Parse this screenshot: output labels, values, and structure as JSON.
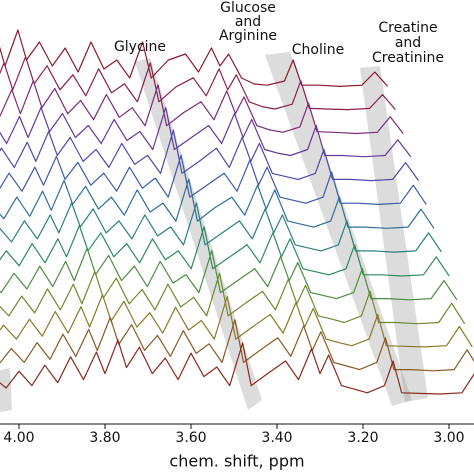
{
  "chart_data": {
    "type": "waterfall",
    "xlabel": "chem. shift, ppm",
    "annotations": [
      [
        "Glycine"
      ],
      [
        "Glucose",
        "and",
        "Arginine"
      ],
      [
        "Choline"
      ],
      [
        "Creatine",
        "and",
        "Creatinine"
      ]
    ],
    "xticks": [
      {
        "value": 4,
        "label": "4.00"
      },
      {
        "value": 3.8,
        "label": "3.80"
      },
      {
        "value": 3.6,
        "label": "3.60"
      },
      {
        "value": 3.4,
        "label": "3.40"
      },
      {
        "value": 3.2,
        "label": "3.20"
      },
      {
        "value": 3,
        "label": "3.00"
      }
    ],
    "x": [
      4.1,
      4.06,
      4.03,
      4.0,
      3.97,
      3.94,
      3.91,
      3.88,
      3.85,
      3.82,
      3.8,
      3.77,
      3.75,
      3.72,
      3.69,
      3.66,
      3.63,
      3.6,
      3.57,
      3.54,
      3.51,
      3.48,
      3.46,
      3.42,
      3.38,
      3.35,
      3.32,
      3.3,
      3.28,
      3.25,
      3.22,
      3.19,
      3.15,
      3.13,
      3.11,
      3.07,
      3.02,
      2.97,
      2.94,
      2.91
    ],
    "series": [
      {
        "color": "#8b1a2a",
        "values": [
          2,
          3.5,
          2,
          5,
          2.5,
          6,
          3,
          8,
          3.5,
          9,
          4,
          10,
          5,
          8,
          4,
          7,
          3,
          8,
          3.5,
          5,
          2,
          8,
          2,
          5,
          6,
          3,
          7,
          4,
          6,
          2,
          1,
          0.8,
          1.5,
          5,
          0.8,
          0.8,
          0.6,
          0.8,
          3,
          0.6
        ]
      },
      {
        "color": "#8b2050",
        "values": [
          1.8,
          3.2,
          2,
          4.8,
          2.4,
          5.5,
          3,
          7.5,
          3.2,
          8.5,
          4,
          9.5,
          5,
          8,
          4,
          6.5,
          3,
          7.5,
          3.5,
          5,
          2,
          8.5,
          2,
          4.5,
          6,
          3,
          7.5,
          4,
          6.5,
          2,
          1.2,
          0.8,
          1.6,
          5.5,
          0.9,
          0.8,
          0.7,
          0.9,
          3.2,
          0.7
        ]
      },
      {
        "color": "#7d2a7a",
        "values": [
          1.7,
          3,
          1.8,
          4.5,
          2.2,
          5.2,
          2.8,
          7,
          3.2,
          8,
          4,
          9.5,
          5,
          8.2,
          4,
          6.2,
          3,
          7.2,
          3.4,
          5,
          2,
          8.8,
          2,
          4.2,
          6,
          3,
          7.8,
          4,
          6.8,
          2,
          1.3,
          0.9,
          1.8,
          5.8,
          1,
          0.9,
          0.7,
          0.9,
          3.5,
          0.7
        ]
      },
      {
        "color": "#633a9a",
        "values": [
          1.6,
          3,
          1.6,
          4.2,
          2,
          5,
          2.6,
          6.5,
          3,
          7.5,
          4,
          9,
          5,
          8,
          4,
          6,
          3,
          7,
          3.5,
          5,
          2,
          9,
          2,
          4,
          6,
          3,
          8,
          4,
          7,
          2,
          1.4,
          1,
          2,
          6,
          1,
          1,
          0.8,
          1,
          3.6,
          0.8
        ]
      },
      {
        "color": "#4d4aa8",
        "values": [
          1.5,
          3,
          1.5,
          4,
          2,
          5,
          2.5,
          6.2,
          3,
          7.2,
          4,
          9,
          5,
          8,
          4,
          6,
          3,
          7,
          3.5,
          5,
          2,
          9.2,
          2,
          4,
          6.2,
          3,
          8,
          4,
          7,
          2,
          1.5,
          1,
          2,
          6,
          1,
          1,
          0.8,
          1,
          3.8,
          0.8
        ]
      },
      {
        "color": "#3a5aa8",
        "values": [
          1.5,
          2.8,
          1.5,
          4,
          2,
          4.8,
          2.5,
          6,
          3,
          7,
          4,
          8.8,
          5,
          7.8,
          4,
          6,
          3,
          7,
          3.5,
          5.2,
          2,
          9,
          2,
          4,
          6,
          3,
          8.2,
          4,
          7,
          2,
          1.5,
          1,
          2,
          6.2,
          1,
          1,
          0.8,
          1,
          4,
          0.8
        ]
      },
      {
        "color": "#2f6e9a",
        "values": [
          1.4,
          2.8,
          1.4,
          3.8,
          2,
          4.8,
          2.4,
          6,
          2.8,
          7,
          3.8,
          8.8,
          4.8,
          7.8,
          4,
          6,
          3,
          7.2,
          3.5,
          5,
          2,
          9,
          2,
          4.2,
          6,
          3,
          8,
          4,
          7.2,
          2,
          1.5,
          1,
          2,
          6,
          1,
          1,
          0.8,
          1,
          4,
          0.8
        ]
      },
      {
        "color": "#2a8080",
        "values": [
          1.5,
          3,
          1.5,
          4,
          2,
          5,
          2.5,
          6,
          3,
          7,
          4,
          9,
          5,
          8,
          4,
          6,
          3,
          7,
          3.5,
          5,
          2,
          9,
          2,
          4,
          6,
          3,
          8,
          4,
          7,
          2,
          1.5,
          1,
          2,
          6,
          1,
          1,
          0.8,
          1,
          4,
          0.8
        ]
      },
      {
        "color": "#2e8a5e",
        "values": [
          1.5,
          3,
          1.6,
          4,
          2,
          5,
          2.5,
          6.2,
          3,
          7,
          4,
          9.2,
          5,
          8,
          4,
          6.2,
          3,
          7,
          3.5,
          5,
          2,
          9,
          2,
          4,
          6,
          3,
          8,
          4,
          7,
          2,
          1.5,
          1,
          2,
          6,
          1,
          1,
          0.8,
          1,
          4,
          0.8
        ]
      },
      {
        "color": "#4a8f3e",
        "values": [
          1.6,
          3.2,
          1.6,
          4.2,
          2,
          5.2,
          2.6,
          6.4,
          3,
          7.2,
          4,
          9.4,
          5,
          8.2,
          4,
          6.4,
          3,
          7.2,
          3.6,
          5,
          2,
          9,
          2,
          4,
          6,
          3,
          8,
          4,
          7,
          2,
          1.5,
          1,
          2,
          6,
          1,
          1,
          0.8,
          1,
          4,
          0.8
        ]
      },
      {
        "color": "#6e8a2e",
        "values": [
          1.6,
          3.4,
          1.7,
          4.4,
          2.1,
          5.4,
          2.6,
          6.6,
          3.1,
          7.4,
          4.1,
          9.5,
          5.1,
          8.4,
          4.1,
          6.5,
          3.1,
          7.4,
          3.6,
          5.2,
          2.1,
          9.2,
          2.1,
          4.2,
          6.2,
          3.1,
          8.2,
          4.1,
          7.2,
          2.1,
          1.6,
          1,
          2.1,
          6.2,
          1,
          1,
          0.8,
          1,
          4.2,
          0.8
        ]
      },
      {
        "color": "#8a7a28",
        "values": [
          1.7,
          3.5,
          1.8,
          4.5,
          2.2,
          5.5,
          2.7,
          6.8,
          3.2,
          7.6,
          4.2,
          9.6,
          5.2,
          8.5,
          4.2,
          6.6,
          3.2,
          7.5,
          3.7,
          5.3,
          2.2,
          9.3,
          2.2,
          4.3,
          6.3,
          3.2,
          8.3,
          4.2,
          7.3,
          2.2,
          1.6,
          1.1,
          2.2,
          6.3,
          1.1,
          1,
          0.9,
          1.1,
          4.3,
          0.9
        ]
      },
      {
        "color": "#8a5a22",
        "values": [
          1.8,
          3.6,
          1.9,
          4.6,
          2.3,
          5.6,
          2.8,
          7,
          3.3,
          7.8,
          4.3,
          9.8,
          5.3,
          8.6,
          4.3,
          6.8,
          3.3,
          7.6,
          3.8,
          5.4,
          2.3,
          9.4,
          2.3,
          4.4,
          6.4,
          3.3,
          8.4,
          4.3,
          7.4,
          2.3,
          1.7,
          1.1,
          2.3,
          6.4,
          1.1,
          1.1,
          0.9,
          1.1,
          4.4,
          0.9
        ]
      },
      {
        "color": "#8b2a1a",
        "values": [
          1.9,
          3.8,
          2,
          4.8,
          2.4,
          5.8,
          2.9,
          7.2,
          3.4,
          8,
          4.4,
          10,
          5.4,
          8.8,
          4.4,
          7,
          3.4,
          7.8,
          3.9,
          5.5,
          2.4,
          9.5,
          2.4,
          4.5,
          6.5,
          3.4,
          8.5,
          4.4,
          7.5,
          2.4,
          1.8,
          1.2,
          2.4,
          6.5,
          1.2,
          1.1,
          1,
          1.2,
          4.5,
          1
        ]
      }
    ]
  }
}
